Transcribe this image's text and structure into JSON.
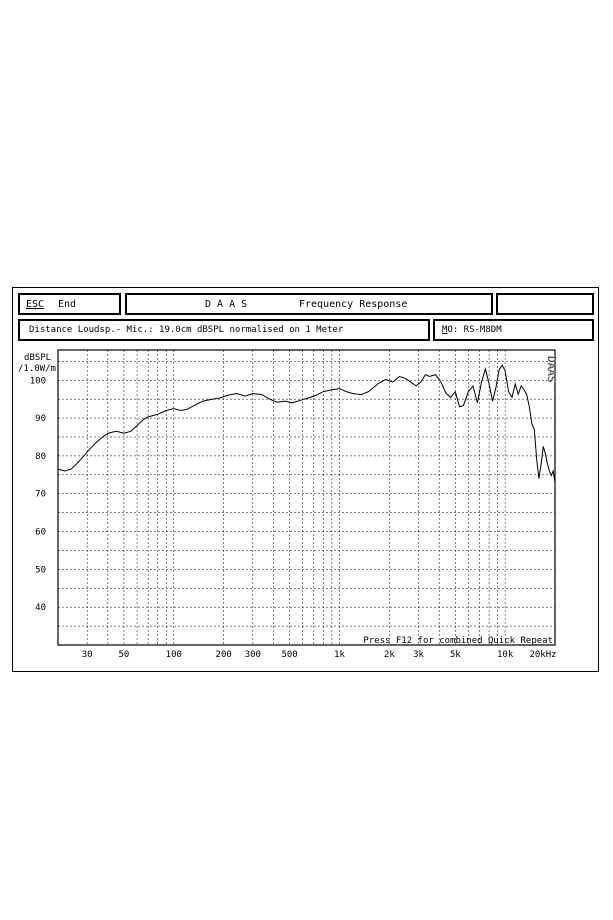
{
  "header": {
    "esc_key": "ESC",
    "end_label": "End",
    "title_left": "D A A S",
    "title_right": "Frequency Response"
  },
  "info": {
    "measurement": "Distance Loudsp.- Mic.: 19.0cm dBSPL normalised on 1 Meter",
    "model_key": "M",
    "model_rest": "O: RS-M8DM"
  },
  "watermark": "DAAS",
  "footer_note": "Press F12 for combined Quick Repeat",
  "chart_data": {
    "type": "line",
    "title": "D A A S  Frequency Response",
    "ylabel_line1": "dBSPL",
    "ylabel_line2": "/1.0W/m",
    "x_scale": "log",
    "xlim": [
      20,
      20000
    ],
    "ylim": [
      30,
      108
    ],
    "grid": true,
    "y_ticks": [
      40,
      50,
      60,
      70,
      80,
      90,
      100
    ],
    "x_ticks": [
      {
        "value": 30,
        "label": "30"
      },
      {
        "value": 50,
        "label": "50"
      },
      {
        "value": 100,
        "label": "100"
      },
      {
        "value": 200,
        "label": "200"
      },
      {
        "value": 300,
        "label": "300"
      },
      {
        "value": 500,
        "label": "500"
      },
      {
        "value": 1000,
        "label": "1k"
      },
      {
        "value": 2000,
        "label": "2k"
      },
      {
        "value": 3000,
        "label": "3k"
      },
      {
        "value": 5000,
        "label": "5k"
      },
      {
        "value": 10000,
        "label": "10k"
      },
      {
        "value": 20000,
        "label": "20kHz"
      }
    ],
    "series": [
      {
        "x": [
          20,
          22,
          24,
          26,
          28,
          30,
          33,
          36,
          40,
          45,
          50,
          55,
          60,
          65,
          70,
          80,
          90,
          100,
          110,
          120,
          135,
          150,
          170,
          190,
          210,
          240,
          270,
          300,
          340,
          380,
          420,
          470,
          520,
          580,
          650,
          720,
          800,
          900,
          1000,
          1100,
          1200,
          1350,
          1500,
          1700,
          1900,
          2100,
          2300,
          2500,
          2700,
          2900,
          3100,
          3300,
          3500,
          3800,
          4100,
          4400,
          4700,
          5000,
          5300,
          5600,
          6000,
          6400,
          6800,
          7200,
          7600,
          8000,
          8400,
          8800,
          9200,
          9600,
          10000,
          10500,
          11000,
          11500,
          12000,
          12500,
          13000,
          13500,
          14000,
          14500,
          15000,
          15500,
          16000,
          16500,
          17000,
          17500,
          18000,
          18500,
          19000,
          19500,
          20000
        ],
        "y": [
          76.5,
          76,
          76.5,
          78,
          79.5,
          81,
          83,
          84.5,
          86,
          86.5,
          86,
          86.5,
          88,
          89.5,
          90.3,
          91,
          92,
          92.5,
          92,
          92.3,
          93.5,
          94.5,
          95,
          95.3,
          96,
          96.5,
          95.8,
          96.5,
          96.2,
          95,
          94.2,
          94.5,
          94,
          94.7,
          95.3,
          96,
          97,
          97.5,
          97.8,
          97,
          96.5,
          96.2,
          97,
          99,
          100.2,
          99.5,
          101,
          100.5,
          99.5,
          98.5,
          99.5,
          101.5,
          101,
          101.5,
          99.5,
          96.5,
          95.5,
          97,
          93,
          93.3,
          97,
          98.5,
          94,
          99.5,
          103,
          99,
          94.5,
          98,
          102.8,
          104,
          102.5,
          97,
          95.5,
          99,
          96.3,
          98.5,
          97.5,
          96.2,
          93,
          88.5,
          87,
          79,
          74,
          78,
          82.5,
          80.5,
          78,
          76,
          74.8,
          76,
          73
        ]
      }
    ]
  }
}
